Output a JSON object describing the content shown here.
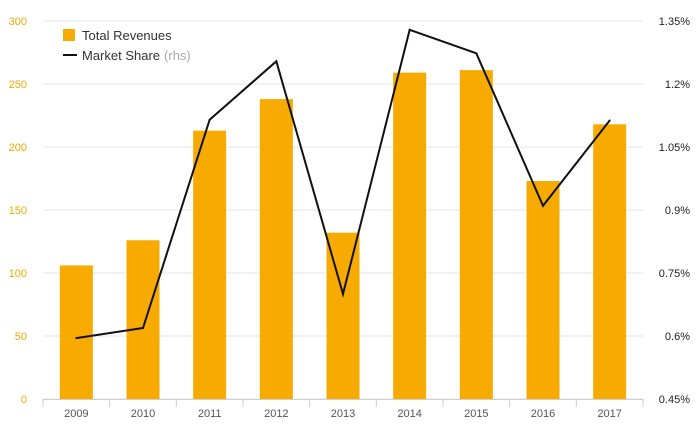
{
  "chart_data": {
    "type": "bar",
    "categories": [
      "2009",
      "2010",
      "2011",
      "2012",
      "2013",
      "2014",
      "2015",
      "2016",
      "2017"
    ],
    "series": [
      {
        "name": "Total Revenues",
        "type": "bar",
        "axis": "left",
        "color": "#f7ab00",
        "values": [
          106,
          126,
          213,
          238,
          132,
          259,
          261,
          173,
          218
        ]
      },
      {
        "name": "Market Share",
        "type": "line",
        "axis": "right",
        "color": "#111111",
        "values": [
          0.595,
          0.619,
          1.115,
          1.254,
          0.7,
          1.329,
          1.273,
          0.91,
          1.113
        ]
      }
    ],
    "legend": {
      "bar_label": "Total Revenues",
      "line_label": "Market Share",
      "line_suffix": "(rhs)",
      "placement": "top-left"
    },
    "y_left": {
      "ylim": [
        0,
        300
      ],
      "ticks": [
        "0",
        "50",
        "100",
        "150",
        "200",
        "250",
        "300"
      ],
      "color": "#f5a800"
    },
    "y_right": {
      "ylim": [
        0.45,
        1.35
      ],
      "ticks": [
        "0.45%",
        "0.6%",
        "0.75%",
        "0.9%",
        "1.05%",
        "1.2%",
        "1.35%"
      ]
    },
    "grid": true
  }
}
